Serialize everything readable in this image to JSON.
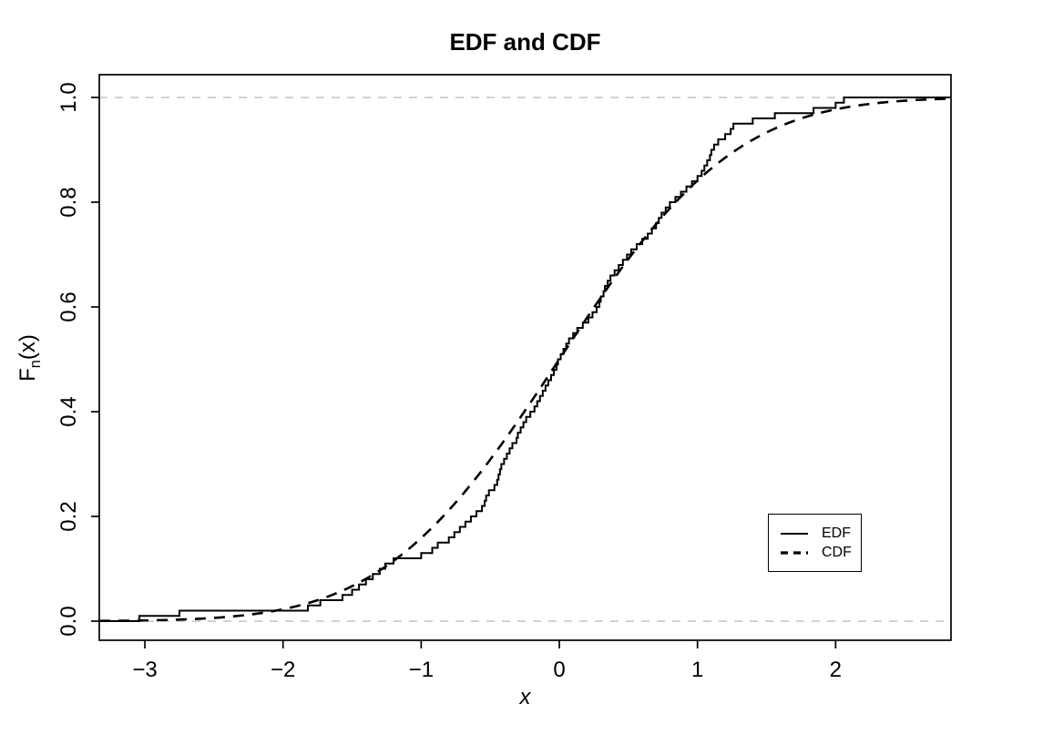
{
  "title": "EDF and CDF",
  "x_axis": {
    "label": "x",
    "tick_labels": [
      "−3",
      "−2",
      "−1",
      "0",
      "1",
      "2"
    ]
  },
  "y_axis": {
    "label_f": "F",
    "label_sub": "n",
    "label_rest": "(x)",
    "tick_labels": [
      "0.0",
      "0.2",
      "0.4",
      "0.6",
      "0.8",
      "1.0"
    ]
  },
  "legend": {
    "entries": [
      {
        "label": "EDF",
        "line_style": "solid"
      },
      {
        "label": "CDF",
        "line_style": "dashed"
      }
    ]
  },
  "colors": {
    "line": "#000000",
    "grid": "#bdbdbd",
    "background": "#ffffff"
  },
  "chart_data": {
    "type": "line",
    "title": "EDF and CDF",
    "xlabel": "x",
    "ylabel": "Fn(x)",
    "xlim": [
      -3.33,
      2.835
    ],
    "ylim": [
      -0.0365,
      1.0435
    ],
    "x_ticks": [
      -3,
      -2,
      -1,
      0,
      1,
      2
    ],
    "y_ticks": [
      0.0,
      0.2,
      0.4,
      0.6,
      0.8,
      1.0
    ],
    "grid": "off",
    "reference_lines": {
      "y": [
        0.0,
        1.0
      ],
      "style": "dashed",
      "color": "#bdbdbd"
    },
    "legend_position": "right-center",
    "series": [
      {
        "name": "EDF",
        "style": "solid step function",
        "n": 100,
        "sample_sorted": [
          -3.04,
          -2.75,
          -1.82,
          -1.73,
          -1.57,
          -1.5,
          -1.45,
          -1.4,
          -1.35,
          -1.3,
          -1.26,
          -1.2,
          -1.0,
          -0.92,
          -0.88,
          -0.8,
          -0.76,
          -0.72,
          -0.68,
          -0.64,
          -0.6,
          -0.56,
          -0.54,
          -0.53,
          -0.51,
          -0.47,
          -0.45,
          -0.44,
          -0.43,
          -0.42,
          -0.4,
          -0.38,
          -0.36,
          -0.34,
          -0.31,
          -0.3,
          -0.28,
          -0.26,
          -0.24,
          -0.21,
          -0.18,
          -0.16,
          -0.14,
          -0.12,
          -0.1,
          -0.08,
          -0.06,
          -0.04,
          -0.02,
          -0.01,
          0.01,
          0.03,
          0.05,
          0.07,
          0.1,
          0.13,
          0.17,
          0.21,
          0.24,
          0.27,
          0.29,
          0.3,
          0.32,
          0.33,
          0.35,
          0.37,
          0.4,
          0.43,
          0.46,
          0.49,
          0.52,
          0.56,
          0.6,
          0.64,
          0.67,
          0.7,
          0.72,
          0.74,
          0.77,
          0.8,
          0.84,
          0.88,
          0.92,
          0.96,
          1.0,
          1.03,
          1.05,
          1.07,
          1.09,
          1.1,
          1.12,
          1.15,
          1.2,
          1.24,
          1.26,
          1.4,
          1.56,
          1.84,
          2.0,
          2.06
        ]
      },
      {
        "name": "CDF",
        "style": "dashed smooth curve",
        "function": "normal_cdf",
        "mean": 0,
        "sd": 1
      }
    ]
  }
}
